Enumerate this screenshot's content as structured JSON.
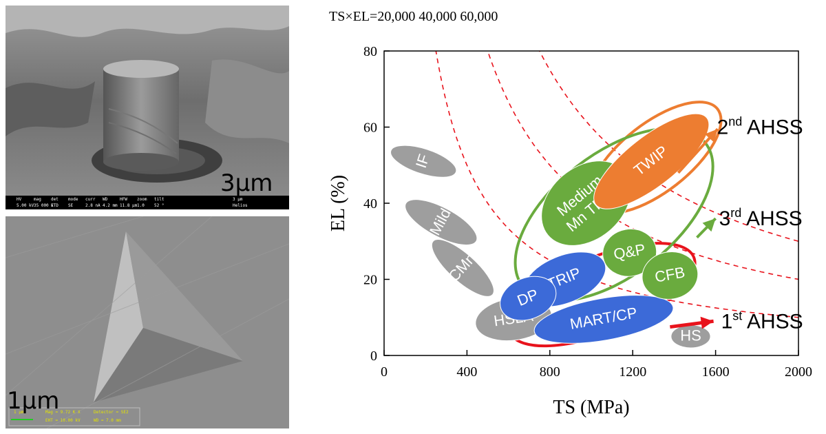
{
  "images": {
    "top": {
      "scale_label": "3μm",
      "info_bar": {
        "headers": [
          "HV",
          "mag",
          "det",
          "mode",
          "curr",
          "WD",
          "HFW",
          "zoom",
          "tilt"
        ],
        "values": [
          "5.00 kV",
          "35 000 x",
          "ETD",
          "SE",
          "2.8 nA",
          "4.2 mm",
          "11.8 μm",
          "1.0",
          "52 °"
        ],
        "bar_label": "3 μm",
        "brand": "Helios"
      }
    },
    "bottom": {
      "scale_label": "1μm",
      "info": {
        "bar_label": "1 μm",
        "mag": "Mag = 9.72 K X",
        "detector": "Detector = SE2",
        "eht": "EHT = 10.00 kV",
        "wd": "WD = 7.0 mm"
      }
    }
  },
  "chart_data": {
    "type": "scatter",
    "header": "TS×EL=20,000   40,000   60,000",
    "xlabel": "TS (MPa)",
    "ylabel": "EL (%)",
    "xlim": [
      0,
      2000
    ],
    "ylim": [
      0,
      80
    ],
    "xticks": [
      "0",
      "400",
      "800",
      "1200",
      "1600",
      "2000"
    ],
    "yticks": [
      "0",
      "20",
      "40",
      "60",
      "80"
    ],
    "iso_curves": [
      20000,
      40000,
      60000
    ],
    "regions": [
      {
        "label": "IF",
        "cx": 190,
        "cy": 51,
        "rx": 60,
        "ry": 9,
        "angle": -72,
        "color": "#9e9e9e"
      },
      {
        "label": "Mild",
        "cx": 275,
        "cy": 35,
        "rx": 70,
        "ry": 10.5,
        "angle": -62,
        "color": "#9e9e9e"
      },
      {
        "label": "CMn",
        "cx": 380,
        "cy": 23,
        "rx": 65,
        "ry": 10.5,
        "angle": -48,
        "color": "#9e9e9e"
      },
      {
        "label": "HSLA",
        "cx": 625,
        "cy": 9.5,
        "rx": 185,
        "ry": 5.5,
        "angle": -8,
        "color": "#9e9e9e"
      },
      {
        "label": "HS",
        "cx": 1480,
        "cy": 5,
        "rx": 95,
        "ry": 3,
        "angle": 0,
        "color": "#9e9e9e"
      },
      {
        "label": "TRIP",
        "cx": 870,
        "cy": 20,
        "rx": 210,
        "ry": 6.2,
        "angle": -22,
        "color": "#3c6ad8"
      },
      {
        "label": "DP",
        "cx": 695,
        "cy": 15,
        "rx": 140,
        "ry": 5.4,
        "angle": -22,
        "color": "#3c6ad8"
      },
      {
        "label": "MART/CP",
        "cx": 1060,
        "cy": 9.5,
        "rx": 340,
        "ry": 5.5,
        "angle": -10,
        "color": "#3c6ad8"
      },
      {
        "label": "Medium\nMn TRIP",
        "cx": 975,
        "cy": 40,
        "rx": 240,
        "ry": 9.5,
        "angle": -40,
        "color": "#6aab3e"
      },
      {
        "label": "Q&P",
        "cx": 1185,
        "cy": 27,
        "rx": 130,
        "ry": 6.2,
        "angle": -10,
        "color": "#6aab3e"
      },
      {
        "label": "CFB",
        "cx": 1380,
        "cy": 21,
        "rx": 135,
        "ry": 6.2,
        "angle": -10,
        "color": "#6aab3e"
      },
      {
        "label": "TWIP",
        "cx": 1290,
        "cy": 51,
        "rx": 340,
        "ry": 6.5,
        "angle": -38,
        "color": "#ed7d31"
      }
    ],
    "groups": [
      {
        "label": "1st AHSS",
        "base": "1",
        "sup": "st",
        "rest": " AHSS",
        "color": "#e8131c",
        "cx": 1050,
        "cy": 16,
        "rx": 480,
        "ry": 10,
        "angle": -22
      },
      {
        "label": "2nd AHSS",
        "base": "2",
        "sup": "nd",
        "rest": " AHSS",
        "color": "#ed7d31",
        "cx": 1310,
        "cy": 52,
        "rx": 380,
        "ry": 9,
        "angle": -38
      },
      {
        "label": "3rd AHSS",
        "base": "3",
        "sup": "rd",
        "rest": " AHSS",
        "color": "#6aab3e",
        "cx": 1110,
        "cy": 37,
        "rx": 560,
        "ry": 16,
        "angle": -38
      }
    ]
  }
}
